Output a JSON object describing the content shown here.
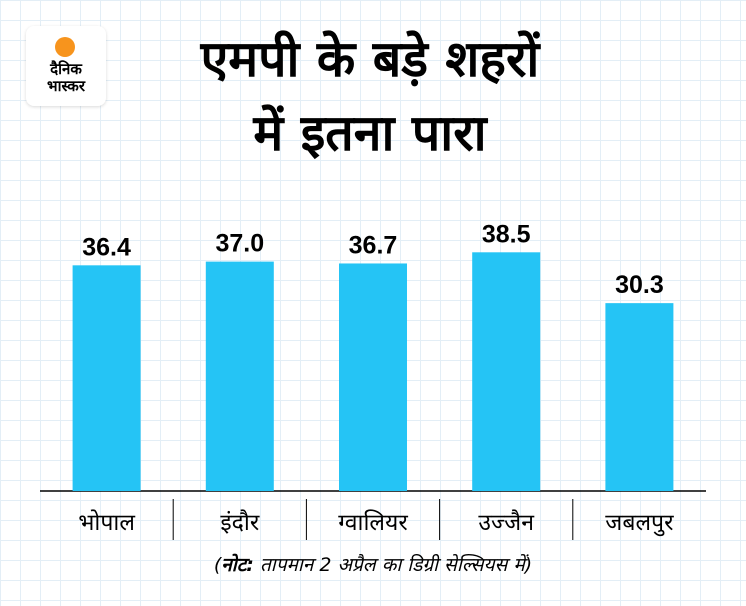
{
  "brand": {
    "line1": "दैनिक",
    "line2": "भास्कर",
    "accent": "#f7941d"
  },
  "title": {
    "line1": "एमपी के बड़े शहरों",
    "line2": "में इतना पारा"
  },
  "note": {
    "prefix": "(",
    "bold": "नोट:",
    "text": " तापमान 2 अप्रैल का डिग्री सेल्सियस में)"
  },
  "colors": {
    "bar": "#25c4f5"
  },
  "chart_data": {
    "type": "bar",
    "categories": [
      "भोपाल",
      "इंदौर",
      "ग्वालियर",
      "उज्जैन",
      "जबलपुर"
    ],
    "values": [
      36.4,
      37.0,
      36.7,
      38.5,
      30.3
    ],
    "data_labels": [
      "36.4",
      "37.0",
      "36.7",
      "38.5",
      "30.3"
    ],
    "ylim": [
      0,
      45
    ],
    "grid": false,
    "legend": "none"
  }
}
